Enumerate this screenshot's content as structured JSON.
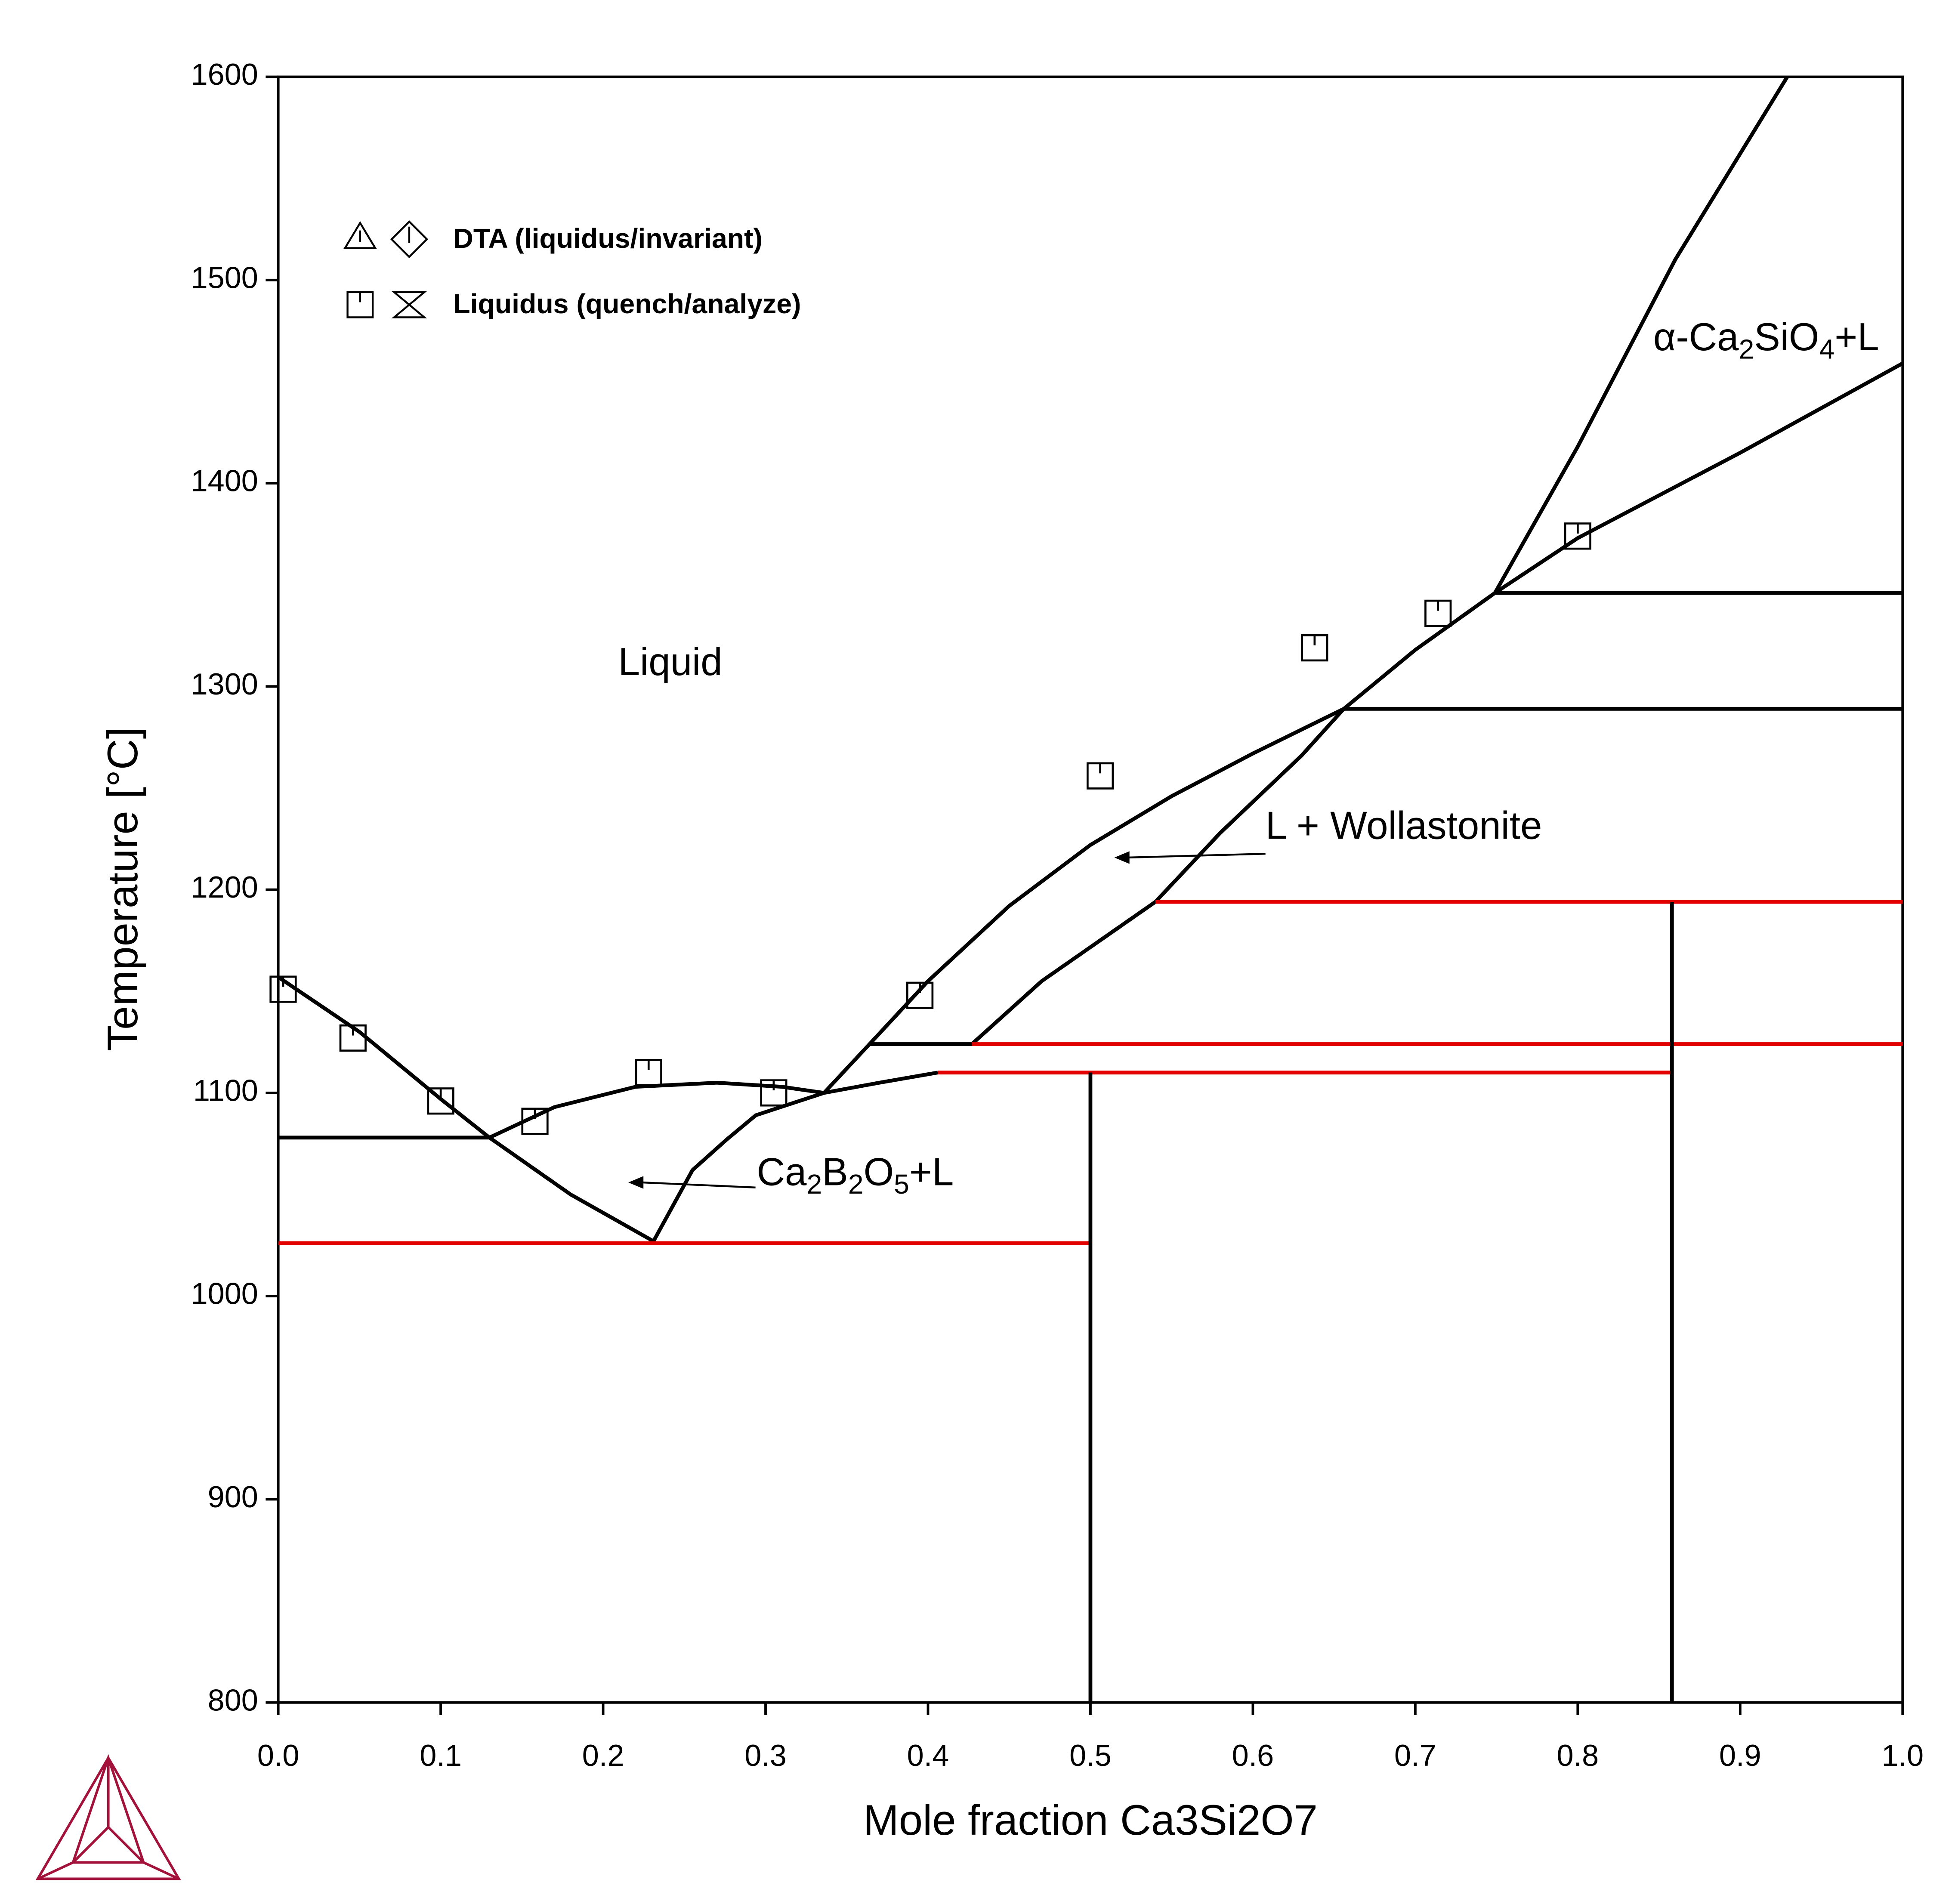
{
  "chart_data": {
    "type": "line",
    "x_label": "Mole fraction Ca3Si2O7",
    "y_label": "Temperature [°C]",
    "xlim": [
      0,
      1
    ],
    "ylim": [
      800,
      1600
    ],
    "xticks": [
      {
        "value": 0,
        "label": "0.0"
      },
      0.1,
      0.2,
      0.3,
      0.4,
      0.5,
      0.6,
      0.7,
      0.8,
      0.9,
      {
        "value": 1,
        "label": "1.0"
      }
    ],
    "yticks": [
      800,
      900,
      1000,
      1100,
      1200,
      1300,
      1400,
      1500,
      1600
    ],
    "legend": [
      "DTA (liquidus/invariant)",
      "Liquidus (quench/analyze)"
    ],
    "annotations": [
      "Liquid",
      "L + Wollastonite",
      "Ca2B2O5+L",
      "α-Ca2SiO4+L"
    ],
    "series": [
      {
        "color": "#000000",
        "x": [
          0,
          0.05,
          0.1,
          0.13,
          0.18,
          0.231
        ],
        "values": [
          1157,
          1130,
          1097,
          1078,
          1050,
          1027
        ]
      },
      {
        "color": "#000000",
        "x": [
          0.13,
          0.17,
          0.22,
          0.27,
          0.31,
          0.336
        ],
        "values": [
          1078,
          1093,
          1103,
          1105,
          1103,
          1100
        ]
      },
      {
        "color": "#000000",
        "x": [
          0.231,
          0.255,
          0.276,
          0.294,
          0.336,
          0.37,
          0.406
        ],
        "values": [
          1027,
          1062,
          1077,
          1089,
          1100,
          1105,
          1110
        ]
      },
      {
        "color": "#000000",
        "x": [
          0.336,
          0.364,
          0.4,
          0.45,
          0.5,
          0.55,
          0.6,
          0.656
        ],
        "values": [
          1100,
          1124,
          1155,
          1192,
          1222,
          1246,
          1267,
          1289
        ]
      },
      {
        "color": "#000000",
        "x": [
          0.427,
          0.47,
          0.54,
          0.58,
          0.63,
          0.656,
          0.7,
          0.749
        ],
        "values": [
          1124,
          1155,
          1194,
          1228,
          1266,
          1289,
          1318,
          1346
        ]
      },
      {
        "color": "#000000",
        "x": [
          0.749,
          0.8,
          0.86,
          0.929
        ],
        "values": [
          1346,
          1418,
          1510,
          1600
        ]
      },
      {
        "color": "#000000",
        "x": [
          0.749,
          0.8,
          0.9,
          1
        ],
        "values": [
          1346,
          1373,
          1415,
          1459
        ]
      },
      {
        "color": "#000000",
        "x": [
          0.749,
          1
        ],
        "values": [
          1346,
          1346
        ]
      },
      {
        "color": "#000000",
        "x": [
          0.656,
          1
        ],
        "values": [
          1289,
          1289
        ]
      },
      {
        "color": "#000000",
        "x": [
          0.364,
          0.427
        ],
        "values": [
          1124,
          1124
        ]
      },
      {
        "color": "#000000",
        "x": [
          0,
          0.13
        ],
        "values": [
          1078,
          1078
        ]
      },
      {
        "color": "#e00000",
        "x": [
          0.54,
          1
        ],
        "values": [
          1194,
          1194
        ]
      },
      {
        "color": "#e00000",
        "x": [
          0.427,
          1
        ],
        "values": [
          1124,
          1124
        ]
      },
      {
        "color": "#e00000",
        "x": [
          0.406,
          0.858
        ],
        "values": [
          1110,
          1110
        ]
      },
      {
        "color": "#e00000",
        "x": [
          0,
          0.5
        ],
        "values": [
          1026,
          1026
        ]
      },
      {
        "color": "#000000",
        "x": [
          0.5,
          0.5
        ],
        "values": [
          800,
          1110
        ]
      },
      {
        "color": "#000000",
        "x": [
          0.858,
          0.858
        ],
        "values": [
          800,
          1194
        ]
      }
    ],
    "points": {
      "marker": "square",
      "color": "#000000",
      "x": [
        0.003,
        0.046,
        0.1,
        0.158,
        0.228,
        0.305,
        0.395,
        0.506,
        0.638,
        0.714,
        0.8
      ],
      "values": [
        1151,
        1127,
        1096,
        1086,
        1110,
        1100,
        1148,
        1256,
        1319,
        1336,
        1374
      ]
    }
  }
}
